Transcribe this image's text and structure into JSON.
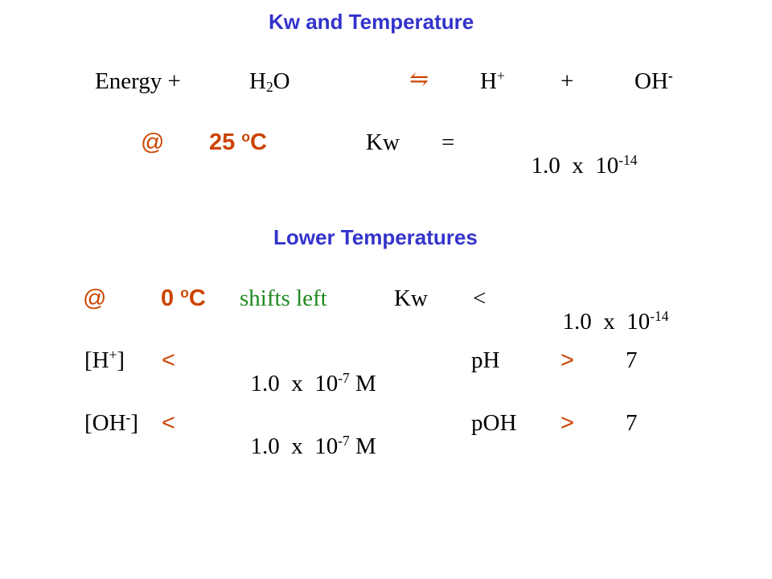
{
  "colors": {
    "heading": "#3333cc",
    "accent": "#cc4400",
    "shift": "#1f8a1f",
    "text": "#000000"
  },
  "section1": {
    "title": "Kw and Temperature",
    "equation": {
      "energy": "Energy +",
      "water_h": "H",
      "water_sub": "2",
      "water_o": "O",
      "arrow": "⇋",
      "h_ion": "H",
      "h_charge": "+",
      "plus": "+",
      "oh_ion": "OH",
      "oh_charge": "-"
    },
    "condition": {
      "at": "@",
      "temp": "25",
      "deg": "o",
      "unit": "C",
      "kw": "Kw",
      "op": "=",
      "value": "1.0  x  10",
      "exp": "-14"
    }
  },
  "section2": {
    "title": "Lower Temperatures",
    "row1": {
      "at": "@",
      "temp": "0",
      "deg": "o",
      "unit": "C",
      "shift": "shifts left",
      "kw": "Kw",
      "op": "<",
      "value": "1.0  x  10",
      "exp": "-14"
    },
    "row2": {
      "ion": "[H",
      "charge": "+",
      "close": "]",
      "op": "<",
      "value": "1.0  x  10",
      "exp": "-7",
      "unit": " M",
      "p_label": "pH",
      "p_op": ">",
      "p_value": "7"
    },
    "row3": {
      "ion": "[OH",
      "charge": "-",
      "close": "]",
      "op": "<",
      "value": "1.0  x  10",
      "exp": "-7",
      "unit": " M",
      "p_label": "pOH",
      "p_op": ">",
      "p_value": "7"
    }
  }
}
